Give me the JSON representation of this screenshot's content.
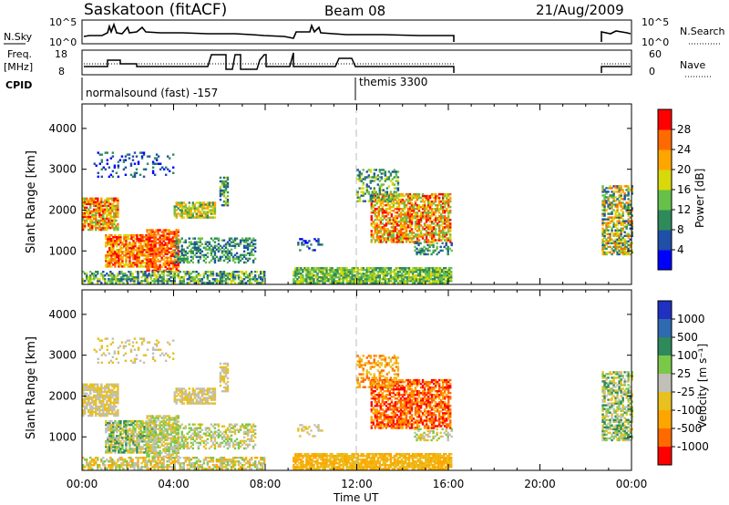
{
  "header": {
    "station": "Saskatoon (fitACF)",
    "beam": "Beam 08",
    "date": "21/Aug/2009"
  },
  "colors": {
    "gap_marker": "#bbbbbb",
    "power_scale": [
      "#0000ff",
      "#1f4fa8",
      "#2e8a5a",
      "#66c04a",
      "#d8d80a",
      "#ffa500",
      "#ff6a00",
      "#ff0000"
    ],
    "velocity_scale": [
      "#2030c0",
      "#2e6ab0",
      "#2e8a5a",
      "#7ac84a",
      "#c0c0b8",
      "#e8c020",
      "#ffa500",
      "#ff6a00",
      "#ff0000"
    ]
  },
  "labels": {
    "nsky": "N.Sky",
    "nsky_top": "10^5",
    "nsky_bottom": "10^0",
    "nsky_top_r": "10^5",
    "nsky_bottom_r": "10^0",
    "nsearch": "N.Search",
    "freq": "Freq.",
    "freq_unit": "[MHz]",
    "freq_top": "18",
    "freq_bottom": "8",
    "nave": "Nave",
    "nave_top": "60",
    "nave_bottom": "0",
    "cpid": "CPID",
    "cpid1": "normalsound (fast) -157",
    "cpid2": "themis 3300",
    "ylabel_top": "Slant Range [km]",
    "ylabel_bottom": "Slant Range [km]",
    "xlabel": "Time UT",
    "power_label": "Power [dB]",
    "velocity_label": "Velocity  [m s⁻¹]"
  },
  "chart_data": [
    {
      "type": "heatmap",
      "title": "Power",
      "xlabel": "Time UT",
      "ylabel": "Slant Range [km]",
      "xlim": [
        0,
        24
      ],
      "ylim": [
        180,
        4600
      ],
      "x_ticks": [
        "00:00",
        "04:00",
        "08:00",
        "12:00",
        "16:00",
        "20:00",
        "00:00"
      ],
      "y_ticks": [
        1000,
        2000,
        3000,
        4000
      ],
      "colorbar_label": "Power [dB]",
      "colorbar_ticks": [
        4,
        8,
        12,
        16,
        20,
        24,
        28
      ],
      "colorbar_range": [
        0,
        32
      ],
      "data_gaps_hours": [
        [
          8.0,
          9.2
        ],
        [
          16.2,
          22.7
        ]
      ]
    },
    {
      "type": "heatmap",
      "title": "Velocity",
      "xlabel": "Time UT",
      "ylabel": "Slant Range [km]",
      "xlim": [
        0,
        24
      ],
      "ylim": [
        180,
        4600
      ],
      "x_ticks": [
        "00:00",
        "04:00",
        "08:00",
        "12:00",
        "16:00",
        "20:00",
        "00:00"
      ],
      "y_ticks": [
        1000,
        2000,
        3000,
        4000
      ],
      "colorbar_label": "Velocity [m s-1]",
      "colorbar_ticks": [
        "1000",
        "500",
        "100",
        "25",
        "-25",
        "-100",
        "-500",
        "-1000"
      ],
      "data_gaps_hours": [
        [
          8.0,
          9.2
        ],
        [
          16.2,
          22.7
        ]
      ]
    }
  ]
}
